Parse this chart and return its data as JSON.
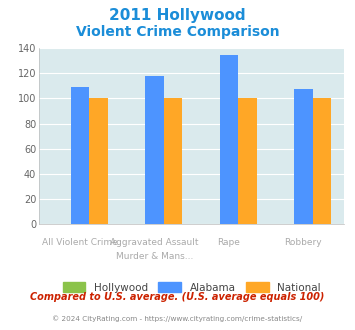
{
  "title_line1": "2011 Hollywood",
  "title_line2": "Violent Crime Comparison",
  "categories_top": [
    "",
    "Aggravated Assault",
    "",
    ""
  ],
  "categories_bot": [
    "All Violent Crime",
    "Murder & Mans...",
    "Rape",
    "Robbery"
  ],
  "hollywood": [
    0,
    0,
    0,
    0
  ],
  "alabama": [
    109,
    118,
    134,
    107
  ],
  "national": [
    100,
    100,
    100,
    100
  ],
  "hollywood_color": "#8bc34a",
  "alabama_color": "#4d94ff",
  "national_color": "#ffa726",
  "ylim": [
    0,
    140
  ],
  "yticks": [
    0,
    20,
    40,
    60,
    80,
    100,
    120,
    140
  ],
  "plot_bg": "#daeaed",
  "title_color": "#1b8dd8",
  "footer_text": "Compared to U.S. average. (U.S. average equals 100)",
  "credit_text": "© 2024 CityRating.com - https://www.cityrating.com/crime-statistics/",
  "footer_color": "#cc2200",
  "credit_color": "#888888",
  "legend_labels": [
    "Hollywood",
    "Alabama",
    "National"
  ],
  "n_groups": 4,
  "bar_width": 0.25
}
